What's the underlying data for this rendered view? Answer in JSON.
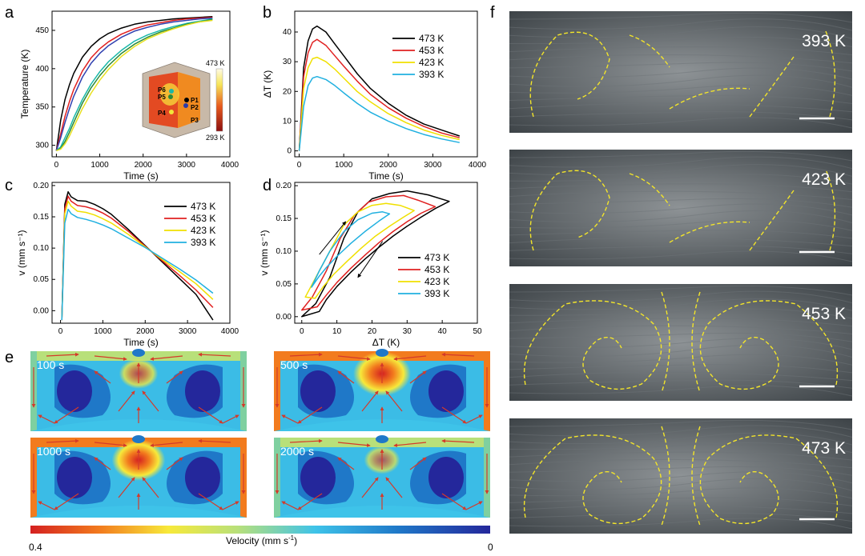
{
  "panel_letters": {
    "a": "a",
    "b": "b",
    "c": "c",
    "d": "d",
    "e": "e",
    "f": "f"
  },
  "chart_data": [
    {
      "id": "a",
      "type": "line",
      "xlabel": "Time (s)",
      "ylabel": "Temperature (K)",
      "xlim": [
        -100,
        4000
      ],
      "ylim": [
        285,
        475
      ],
      "xticks": [
        0,
        1000,
        2000,
        3000,
        4000
      ],
      "yticks": [
        300,
        350,
        400,
        450
      ],
      "series": [
        {
          "name": "P1",
          "color": "#000000",
          "x": [
            0,
            100,
            200,
            300,
            400,
            600,
            800,
            1000,
            1200,
            1500,
            1800,
            2100,
            2400,
            2700,
            3000,
            3300,
            3600
          ],
          "y": [
            293,
            333,
            360,
            379,
            394,
            415,
            429,
            439,
            446,
            453,
            458,
            461,
            463,
            465,
            466,
            467,
            468
          ]
        },
        {
          "name": "P2",
          "color": "#e02020",
          "x": [
            0,
            100,
            200,
            300,
            400,
            600,
            800,
            1000,
            1200,
            1500,
            1800,
            2100,
            2400,
            2700,
            3000,
            3300,
            3600
          ],
          "y": [
            293,
            315,
            338,
            357,
            373,
            397,
            414,
            426,
            435,
            445,
            452,
            457,
            460,
            463,
            465,
            466,
            467
          ]
        },
        {
          "name": "P3",
          "color": "#3040b0",
          "x": [
            0,
            100,
            200,
            300,
            400,
            600,
            800,
            1000,
            1200,
            1500,
            1800,
            2100,
            2400,
            2700,
            3000,
            3300,
            3600
          ],
          "y": [
            293,
            310,
            330,
            348,
            364,
            389,
            407,
            420,
            430,
            441,
            449,
            454,
            458,
            461,
            463,
            465,
            466
          ]
        },
        {
          "name": "P4",
          "color": "#1ab8a8",
          "x": [
            0,
            100,
            200,
            300,
            400,
            600,
            800,
            1000,
            1200,
            1500,
            1800,
            2100,
            2400,
            2700,
            3000,
            3300,
            3600
          ],
          "y": [
            293,
            298,
            310,
            322,
            336,
            360,
            380,
            396,
            409,
            424,
            436,
            444,
            450,
            455,
            459,
            462,
            465
          ]
        },
        {
          "name": "P5",
          "color": "#2a8a3a",
          "x": [
            0,
            100,
            200,
            300,
            400,
            600,
            800,
            1000,
            1200,
            1500,
            1800,
            2100,
            2400,
            2700,
            3000,
            3300,
            3600
          ],
          "y": [
            293,
            296,
            305,
            317,
            330,
            355,
            375,
            391,
            404,
            420,
            432,
            441,
            448,
            453,
            458,
            461,
            464
          ]
        },
        {
          "name": "P6",
          "color": "#e8e020",
          "x": [
            0,
            100,
            200,
            300,
            400,
            600,
            800,
            1000,
            1200,
            1500,
            1800,
            2100,
            2400,
            2700,
            3000,
            3300,
            3600
          ],
          "y": [
            293,
            295,
            302,
            312,
            324,
            348,
            368,
            385,
            399,
            416,
            429,
            439,
            446,
            452,
            457,
            461,
            463
          ]
        }
      ],
      "inset": {
        "max_label": "473 K",
        "min_label": "293 K",
        "points": [
          "P1",
          "P2",
          "P3",
          "P4",
          "P5",
          "P6"
        ]
      }
    },
    {
      "id": "b",
      "type": "line",
      "xlabel": "Time (s)",
      "ylabel": "ΔT (K)",
      "xlim": [
        -100,
        4000
      ],
      "ylim": [
        -2,
        47
      ],
      "xticks": [
        0,
        1000,
        2000,
        3000,
        4000
      ],
      "yticks": [
        0,
        10,
        20,
        30,
        40
      ],
      "series": [
        {
          "name": "473 K",
          "color": "#000000",
          "x": [
            0,
            100,
            200,
            300,
            400,
            600,
            800,
            1000,
            1300,
            1600,
            2000,
            2400,
            2800,
            3200,
            3600
          ],
          "y": [
            0,
            28,
            37,
            41,
            42,
            40,
            36,
            32,
            26,
            21,
            16,
            12,
            9,
            7,
            5
          ]
        },
        {
          "name": "453 K",
          "color": "#e02020",
          "x": [
            0,
            100,
            200,
            300,
            400,
            600,
            800,
            1000,
            1300,
            1600,
            2000,
            2400,
            2800,
            3200,
            3600
          ],
          "y": [
            0,
            25,
            33,
            36.5,
            37.5,
            35.5,
            32,
            28.5,
            23.5,
            19,
            14.5,
            11,
            8.2,
            6,
            4.4
          ]
        },
        {
          "name": "423 K",
          "color": "#f0e000",
          "x": [
            0,
            100,
            200,
            300,
            400,
            600,
            800,
            1000,
            1300,
            1600,
            2000,
            2400,
            2800,
            3200,
            3600
          ],
          "y": [
            0,
            21,
            28,
            31,
            31.5,
            30,
            27.5,
            24.5,
            20,
            16.5,
            12.5,
            9.5,
            7,
            5.2,
            3.8
          ]
        },
        {
          "name": "393 K",
          "color": "#20b0e0",
          "x": [
            0,
            100,
            200,
            300,
            400,
            600,
            800,
            1000,
            1300,
            1600,
            2000,
            2400,
            2800,
            3200,
            3600
          ],
          "y": [
            0,
            15,
            22,
            24.5,
            25,
            24,
            22,
            19.5,
            16,
            13,
            10,
            7.5,
            5.5,
            4,
            2.8
          ]
        }
      ]
    },
    {
      "id": "c",
      "type": "line",
      "xlabel": "Time (s)",
      "ylabel": "v (mm s⁻¹)",
      "xlim": [
        -200,
        4000
      ],
      "ylim": [
        -0.02,
        0.205
      ],
      "xticks": [
        0,
        1000,
        2000,
        3000,
        4000
      ],
      "yticks": [
        0.0,
        0.05,
        0.1,
        0.15,
        0.2
      ],
      "series": [
        {
          "name": "473 K",
          "color": "#000000",
          "x": [
            30,
            100,
            180,
            250,
            400,
            600,
            800,
            1000,
            1200,
            1600,
            2000,
            2400,
            2800,
            3200,
            3600
          ],
          "y": [
            -0.015,
            0.17,
            0.19,
            0.182,
            0.176,
            0.175,
            0.17,
            0.163,
            0.154,
            0.13,
            0.104,
            0.078,
            0.052,
            0.026,
            -0.015
          ]
        },
        {
          "name": "453 K",
          "color": "#e02020",
          "x": [
            30,
            100,
            180,
            250,
            400,
            600,
            800,
            1000,
            1200,
            1600,
            2000,
            2400,
            2800,
            3200,
            3600
          ],
          "y": [
            -0.015,
            0.163,
            0.183,
            0.175,
            0.168,
            0.166,
            0.162,
            0.156,
            0.148,
            0.127,
            0.103,
            0.08,
            0.057,
            0.033,
            0.005
          ]
        },
        {
          "name": "423 K",
          "color": "#f0e000",
          "x": [
            30,
            100,
            180,
            250,
            400,
            600,
            800,
            1000,
            1200,
            1600,
            2000,
            2400,
            2800,
            3200,
            3600
          ],
          "y": [
            -0.015,
            0.155,
            0.175,
            0.167,
            0.159,
            0.157,
            0.153,
            0.147,
            0.14,
            0.122,
            0.102,
            0.082,
            0.063,
            0.043,
            0.018
          ]
        },
        {
          "name": "393 K",
          "color": "#20b0e0",
          "x": [
            30,
            100,
            180,
            250,
            400,
            600,
            800,
            1000,
            1200,
            1600,
            2000,
            2400,
            2800,
            3200,
            3600
          ],
          "y": [
            -0.015,
            0.14,
            0.162,
            0.155,
            0.149,
            0.146,
            0.142,
            0.137,
            0.131,
            0.116,
            0.101,
            0.084,
            0.067,
            0.049,
            0.028
          ]
        }
      ]
    },
    {
      "id": "d",
      "type": "line",
      "xlabel": "ΔT (K)",
      "ylabel": "v (mm s⁻¹)",
      "xlim": [
        -2,
        50
      ],
      "ylim": [
        -0.01,
        0.205
      ],
      "xticks": [
        0,
        10,
        20,
        30,
        40,
        50
      ],
      "yticks": [
        0.0,
        0.05,
        0.1,
        0.15,
        0.2
      ],
      "series": [
        {
          "name": "473 K",
          "color": "#000000",
          "x": [
            0,
            4,
            8,
            12,
            16,
            20,
            25,
            30,
            36,
            42,
            38,
            34,
            30,
            26,
            22,
            18,
            14,
            10,
            7,
            5
          ],
          "y": [
            0,
            0.02,
            0.06,
            0.12,
            0.16,
            0.18,
            0.188,
            0.192,
            0.186,
            0.176,
            0.165,
            0.152,
            0.138,
            0.123,
            0.106,
            0.088,
            0.068,
            0.046,
            0.026,
            0.008
          ]
        },
        {
          "name": "453 K",
          "color": "#e02020",
          "x": [
            0,
            3,
            7,
            11,
            15,
            19,
            24,
            29,
            33,
            38,
            34,
            30,
            26,
            22,
            18,
            14,
            10,
            7,
            4.4
          ],
          "y": [
            0.01,
            0.03,
            0.07,
            0.12,
            0.155,
            0.175,
            0.183,
            0.185,
            0.178,
            0.168,
            0.158,
            0.145,
            0.13,
            0.113,
            0.094,
            0.074,
            0.052,
            0.033,
            0.015
          ]
        },
        {
          "name": "423 K",
          "color": "#f0e000",
          "x": [
            1,
            4,
            8,
            12,
            16,
            20,
            24,
            28,
            32,
            29,
            25,
            21,
            17,
            13,
            9,
            6,
            3.8
          ],
          "y": [
            0.03,
            0.06,
            0.1,
            0.14,
            0.16,
            0.17,
            0.173,
            0.17,
            0.162,
            0.152,
            0.138,
            0.123,
            0.105,
            0.085,
            0.064,
            0.045,
            0.028
          ]
        },
        {
          "name": "393 K",
          "color": "#20b0e0",
          "x": [
            2.8,
            5,
            8,
            12,
            16,
            20,
            23,
            25,
            22,
            18,
            14,
            10,
            7,
            5,
            2.8
          ],
          "y": [
            0.045,
            0.07,
            0.1,
            0.13,
            0.148,
            0.158,
            0.16,
            0.157,
            0.146,
            0.13,
            0.112,
            0.092,
            0.075,
            0.062,
            0.045
          ]
        }
      ]
    }
  ],
  "sims": {
    "frames": [
      {
        "label": "100 s",
        "intensity": 0.35
      },
      {
        "label": "500 s",
        "intensity": 1.0
      },
      {
        "label": "1000 s",
        "intensity": 0.85
      },
      {
        "label": "2000 s",
        "intensity": 0.25
      }
    ],
    "colorbar": {
      "title": "Velocity (mm s",
      "superscript": "-1",
      "close": ")",
      "left": "0.4",
      "right": "0"
    }
  },
  "photos": [
    {
      "label": "393 K"
    },
    {
      "label": "423 K"
    },
    {
      "label": "453 K"
    },
    {
      "label": "473 K"
    }
  ]
}
